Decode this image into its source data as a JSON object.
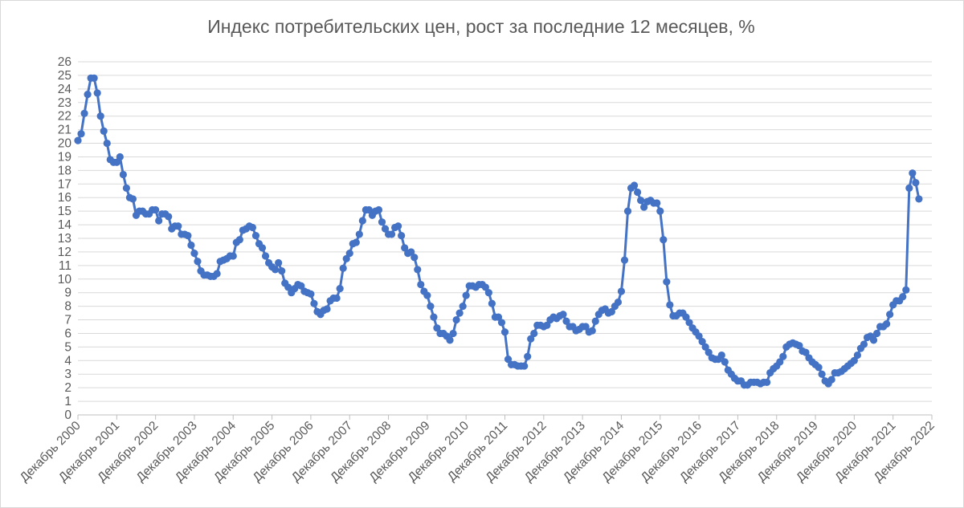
{
  "chart_data": {
    "type": "line",
    "title": "Индекс потребительских цен, рост за последние 12 месяцев, %",
    "xlabel": "",
    "ylabel": "",
    "ylim": [
      0,
      26
    ],
    "y_ticks": [
      0,
      1,
      2,
      3,
      4,
      5,
      6,
      7,
      8,
      9,
      10,
      11,
      12,
      13,
      14,
      15,
      16,
      17,
      18,
      19,
      20,
      21,
      22,
      23,
      24,
      25,
      26
    ],
    "x_range": [
      "2000-12",
      "2022-12"
    ],
    "x_tick_labels": [
      "Декабрь 2000",
      "Декабрь 2001",
      "Декабрь 2002",
      "Декабрь 2003",
      "Декабрь 2004",
      "Декабрь 2005",
      "Декабрь 2006",
      "Декабрь 2007",
      "Декабрь 2008",
      "Декабрь 2009",
      "Декабрь 2010",
      "Декабрь 2011",
      "Декабрь 2012",
      "Декабрь 2013",
      "Декабрь 2014",
      "Декабрь 2015",
      "Декабрь 2016",
      "Декабрь 2017",
      "Декабрь 2018",
      "Декабрь 2019",
      "Декабрь 2020",
      "Декабрь 2021",
      "Декабрь 2022"
    ],
    "grid": "horizontal",
    "legend": "none",
    "series_color": "#4472c4",
    "series": [
      {
        "start": "2000-12",
        "frequency": "monthly",
        "values": [
          20.2,
          20.7,
          22.2,
          23.6,
          24.8,
          24.8,
          23.7,
          22.0,
          20.9,
          20.0,
          18.8,
          18.6,
          18.6,
          19.0,
          17.7,
          16.7,
          16.0,
          15.9,
          14.7,
          15.0,
          15.0,
          14.8,
          14.8,
          15.1,
          15.1,
          14.3,
          14.8,
          14.8,
          14.6,
          13.7,
          13.9,
          13.9,
          13.3,
          13.3,
          13.2,
          12.5,
          11.9,
          11.3,
          10.6,
          10.3,
          10.3,
          10.2,
          10.2,
          10.4,
          11.3,
          11.4,
          11.5,
          11.7,
          11.7,
          12.7,
          12.9,
          13.6,
          13.7,
          13.9,
          13.8,
          13.2,
          12.6,
          12.3,
          11.7,
          11.2,
          10.9,
          10.7,
          11.2,
          10.6,
          9.7,
          9.4,
          9.0,
          9.3,
          9.6,
          9.5,
          9.1,
          9.0,
          8.9,
          8.2,
          7.6,
          7.4,
          7.7,
          7.8,
          8.4,
          8.6,
          8.6,
          9.3,
          10.8,
          11.5,
          11.9,
          12.6,
          12.7,
          13.3,
          14.3,
          15.1,
          15.1,
          14.7,
          15.0,
          15.1,
          14.2,
          13.7,
          13.3,
          13.3,
          13.8,
          13.9,
          13.2,
          12.3,
          11.9,
          12.0,
          11.6,
          10.7,
          9.6,
          9.1,
          8.8,
          8.0,
          7.2,
          6.4,
          6.0,
          6.0,
          5.8,
          5.5,
          6.0,
          7.0,
          7.5,
          8.0,
          8.8,
          9.5,
          9.5,
          9.4,
          9.6,
          9.6,
          9.4,
          9.0,
          8.2,
          7.2,
          7.2,
          6.8,
          6.1,
          4.1,
          3.7,
          3.7,
          3.6,
          3.6,
          3.6,
          4.3,
          5.6,
          6.0,
          6.6,
          6.6,
          6.5,
          6.6,
          7.0,
          7.2,
          7.1,
          7.3,
          7.4,
          6.9,
          6.5,
          6.5,
          6.2,
          6.3,
          6.5,
          6.5,
          6.1,
          6.2,
          6.9,
          7.4,
          7.7,
          7.8,
          7.5,
          7.6,
          8.0,
          8.3,
          9.1,
          11.4,
          15.0,
          16.7,
          16.9,
          16.4,
          15.8,
          15.3,
          15.7,
          15.8,
          15.6,
          15.6,
          15.0,
          12.9,
          9.8,
          8.1,
          7.3,
          7.3,
          7.5,
          7.5,
          7.2,
          6.8,
          6.4,
          6.1,
          5.8,
          5.4,
          5.0,
          4.6,
          4.2,
          4.1,
          4.1,
          4.4,
          3.9,
          3.3,
          3.0,
          2.7,
          2.5,
          2.5,
          2.2,
          2.2,
          2.4,
          2.4,
          2.4,
          2.3,
          2.4,
          2.4,
          3.1,
          3.4,
          3.6,
          3.9,
          4.3,
          5.0,
          5.2,
          5.3,
          5.2,
          5.1,
          4.7,
          4.6,
          4.2,
          3.9,
          3.7,
          3.5,
          3.0,
          2.5,
          2.3,
          2.6,
          3.1,
          3.1,
          3.2,
          3.4,
          3.6,
          3.8,
          4.0,
          4.4,
          4.9,
          5.2,
          5.7,
          5.8,
          5.5,
          6.0,
          6.5,
          6.5,
          6.7,
          7.4,
          8.1,
          8.4,
          8.4,
          8.7,
          9.2,
          16.7,
          17.8,
          17.1,
          15.9
        ]
      }
    ]
  }
}
